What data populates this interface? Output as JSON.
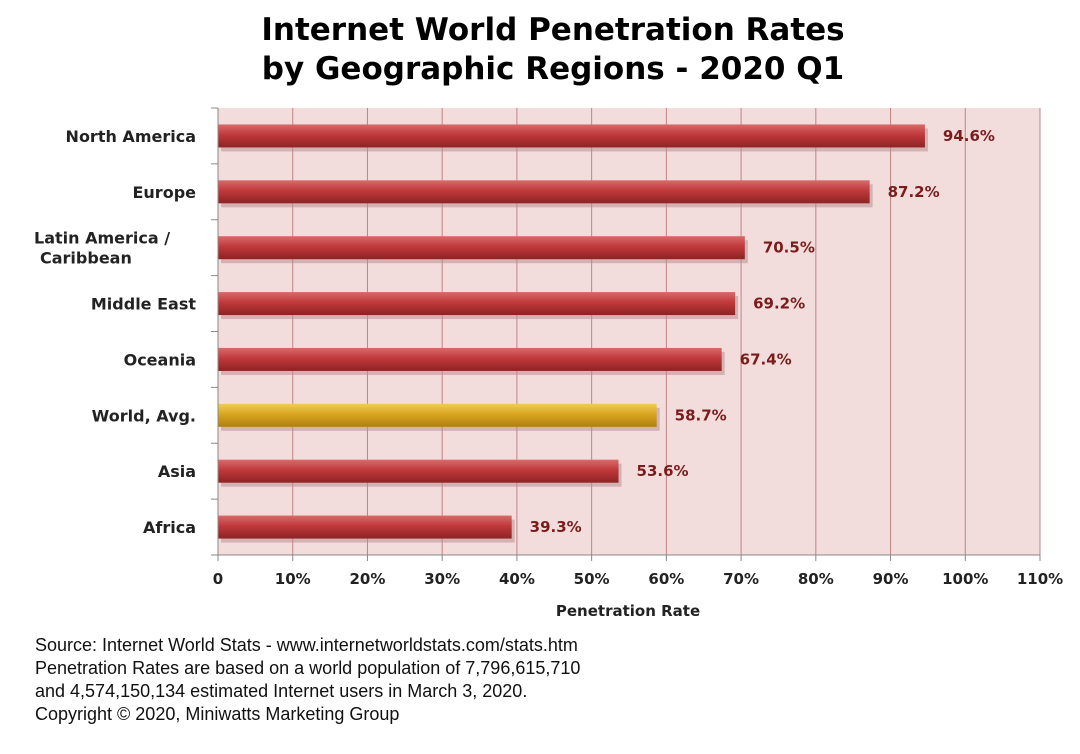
{
  "chart_data": {
    "type": "bar",
    "orientation": "horizontal",
    "title": [
      "Internet World Penetration Rates",
      "by Geographic Regions -  2020 Q1"
    ],
    "categories": [
      [
        "North America"
      ],
      [
        "Europe"
      ],
      [
        "Latin America /",
        "Caribbean"
      ],
      [
        "Middle East"
      ],
      [
        "Oceania"
      ],
      [
        "World, Avg."
      ],
      [
        "Asia"
      ],
      [
        "Africa"
      ]
    ],
    "values": [
      94.6,
      87.2,
      70.5,
      69.2,
      67.4,
      58.7,
      53.6,
      39.3
    ],
    "value_labels": [
      "94.6%",
      "87.2%",
      "70.5%",
      "69.2%",
      "67.4%",
      "58.7%",
      "53.6%",
      "39.3%"
    ],
    "highlight_index": 5,
    "xlabel": "Penetration Rate",
    "xlim": [
      0,
      110
    ],
    "xticks": [
      0,
      10,
      20,
      30,
      40,
      50,
      60,
      70,
      80,
      90,
      100,
      110
    ],
    "xtick_labels": [
      "0",
      "10%",
      "20%",
      "30%",
      "40%",
      "50%",
      "60%",
      "70%",
      "80%",
      "90%",
      "100%",
      "110%"
    ],
    "grid": true,
    "colors": {
      "bar": "#c0393b",
      "bar_dark": "#8e2224",
      "bar_light": "#d96a6a",
      "highlight": "#d9a520",
      "highlight_dark": "#b07e10",
      "highlight_light": "#f0cd55",
      "plot_bg": "#f2dcdc",
      "grid": "#c08484",
      "value_text": "#7b1c1c"
    }
  },
  "source": {
    "line1": "Source: Internet World Stats - www.internetworldstats.com/stats.htm",
    "line2": "Penetration Rates are based on a world population of 7,796,615,710",
    "line3": "and 4,574,150,134 estimated Internet users in March 3, 2020.",
    "line4": "Copyright © 2020, Miniwatts Marketing Group"
  }
}
